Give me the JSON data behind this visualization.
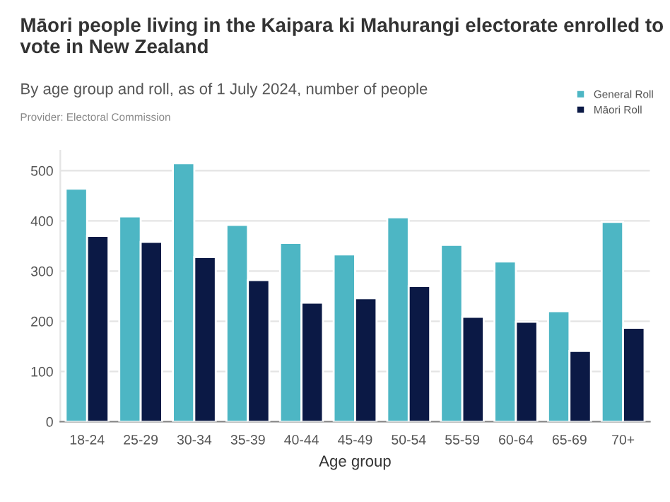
{
  "chart_data": {
    "type": "bar",
    "title": "Māori people living in the Kaipara ki Mahurangi electorate enrolled to vote in New Zealand",
    "subtitle": "By age group and roll, as of 1 July 2024, number of people",
    "annotations": [
      "Provider: Electoral Commission"
    ],
    "xlabel": "Age group",
    "categories": [
      "18-24",
      "25-29",
      "30-34",
      "35-39",
      "40-44",
      "45-49",
      "50-54",
      "55-59",
      "60-64",
      "65-69",
      "70+"
    ],
    "series": [
      {
        "name": "General Roll",
        "color": "#4db6c4",
        "values": [
          464,
          409,
          515,
          392,
          356,
          333,
          407,
          352,
          319,
          220,
          398
        ]
      },
      {
        "name": "Māori Roll",
        "color": "#0b1945",
        "values": [
          370,
          358,
          328,
          282,
          237,
          246,
          270,
          209,
          199,
          141,
          187
        ]
      }
    ],
    "ylim": [
      0,
      540
    ],
    "yticks": [
      0,
      100,
      200,
      300,
      400,
      500
    ],
    "grid": "y",
    "legend": "top right"
  }
}
